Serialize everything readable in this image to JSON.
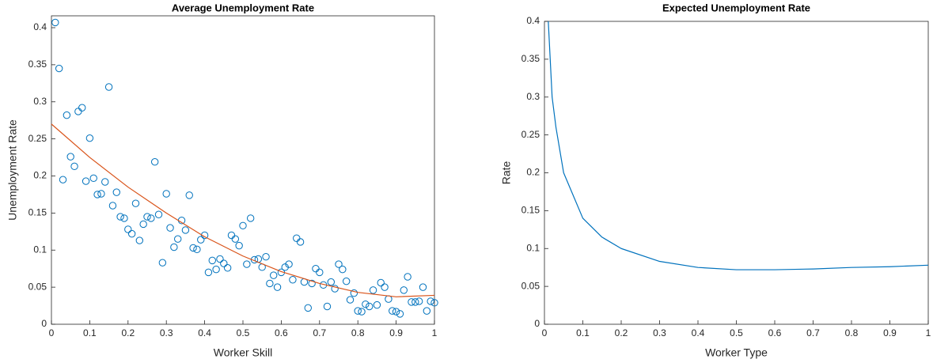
{
  "chart_data": [
    {
      "type": "scatter",
      "title": "Average Unemployment Rate",
      "xlabel": "Worker Skill",
      "ylabel": "Unemployment Rate",
      "xlim": [
        0,
        1
      ],
      "ylim": [
        0,
        0.416
      ],
      "xticks": [
        0,
        0.1,
        0.2,
        0.3,
        0.4,
        0.5,
        0.6,
        0.7,
        0.8,
        0.9,
        1
      ],
      "yticks": [
        0,
        0.05,
        0.1,
        0.15,
        0.2,
        0.25,
        0.3,
        0.35,
        0.4
      ],
      "series": [
        {
          "style": "marker",
          "color": "#0072bd",
          "x": [
            0.01,
            0.02,
            0.03,
            0.04,
            0.05,
            0.06,
            0.07,
            0.08,
            0.09,
            0.1,
            0.11,
            0.12,
            0.13,
            0.14,
            0.15,
            0.16,
            0.17,
            0.18,
            0.19,
            0.2,
            0.21,
            0.22,
            0.23,
            0.24,
            0.25,
            0.26,
            0.27,
            0.28,
            0.29,
            0.3,
            0.31,
            0.32,
            0.33,
            0.34,
            0.35,
            0.36,
            0.37,
            0.38,
            0.39,
            0.4,
            0.41,
            0.42,
            0.43,
            0.44,
            0.45,
            0.46,
            0.47,
            0.48,
            0.49,
            0.5,
            0.51,
            0.52,
            0.53,
            0.54,
            0.55,
            0.56,
            0.57,
            0.58,
            0.59,
            0.6,
            0.61,
            0.62,
            0.63,
            0.64,
            0.65,
            0.66,
            0.67,
            0.68,
            0.69,
            0.7,
            0.71,
            0.72,
            0.73,
            0.74,
            0.75,
            0.76,
            0.77,
            0.78,
            0.79,
            0.8,
            0.81,
            0.82,
            0.83,
            0.84,
            0.85,
            0.86,
            0.87,
            0.88,
            0.89,
            0.9,
            0.91,
            0.92,
            0.93,
            0.94,
            0.95,
            0.96,
            0.97,
            0.98,
            0.99,
            1
          ],
          "values": [
            0.407,
            0.345,
            0.195,
            0.282,
            0.226,
            0.213,
            0.287,
            0.292,
            0.193,
            0.251,
            0.197,
            0.175,
            0.176,
            0.192,
            0.32,
            0.16,
            0.178,
            0.145,
            0.143,
            0.128,
            0.122,
            0.163,
            0.113,
            0.135,
            0.145,
            0.143,
            0.219,
            0.148,
            0.083,
            0.176,
            0.13,
            0.104,
            0.115,
            0.14,
            0.127,
            0.174,
            0.103,
            0.101,
            0.114,
            0.12,
            0.07,
            0.086,
            0.074,
            0.088,
            0.082,
            0.076,
            0.12,
            0.115,
            0.106,
            0.133,
            0.081,
            0.143,
            0.087,
            0.088,
            0.077,
            0.091,
            0.055,
            0.066,
            0.05,
            0.07,
            0.077,
            0.081,
            0.06,
            0.116,
            0.111,
            0.057,
            0.022,
            0.055,
            0.075,
            0.07,
            0.053,
            0.024,
            0.057,
            0.048,
            0.081,
            0.074,
            0.058,
            0.033,
            0.042,
            0.018,
            0.017,
            0.027,
            0.024,
            0.046,
            0.026,
            0.056,
            0.05,
            0.034,
            0.018,
            0.017,
            0.014,
            0.046,
            0.064,
            0.03,
            0.03,
            0.031,
            0.05,
            0.018,
            0.031,
            0.029
          ]
        },
        {
          "style": "line",
          "color": "#d95319",
          "x": [
            0,
            0.1,
            0.2,
            0.3,
            0.4,
            0.5,
            0.6,
            0.7,
            0.8,
            0.9,
            1
          ],
          "values": [
            0.27,
            0.225,
            0.185,
            0.15,
            0.118,
            0.092,
            0.071,
            0.055,
            0.043,
            0.037,
            0.039
          ]
        }
      ]
    },
    {
      "type": "line",
      "title": "Expected Unemployment Rate",
      "xlabel": "Worker Type",
      "ylabel": "Rate",
      "xlim": [
        0,
        1
      ],
      "ylim": [
        0,
        0.4
      ],
      "xticks": [
        0,
        0.1,
        0.2,
        0.3,
        0.4,
        0.5,
        0.6,
        0.7,
        0.8,
        0.9,
        1
      ],
      "yticks": [
        0,
        0.05,
        0.1,
        0.15,
        0.2,
        0.25,
        0.3,
        0.35,
        0.4
      ],
      "series": [
        {
          "style": "line",
          "color": "#0072bd",
          "x": [
            0.01,
            0.02,
            0.03,
            0.05,
            0.1,
            0.15,
            0.2,
            0.3,
            0.4,
            0.5,
            0.6,
            0.7,
            0.8,
            0.9,
            1
          ],
          "values": [
            0.4,
            0.3,
            0.26,
            0.2,
            0.14,
            0.115,
            0.1,
            0.083,
            0.075,
            0.072,
            0.072,
            0.073,
            0.075,
            0.076,
            0.078
          ]
        }
      ]
    }
  ]
}
